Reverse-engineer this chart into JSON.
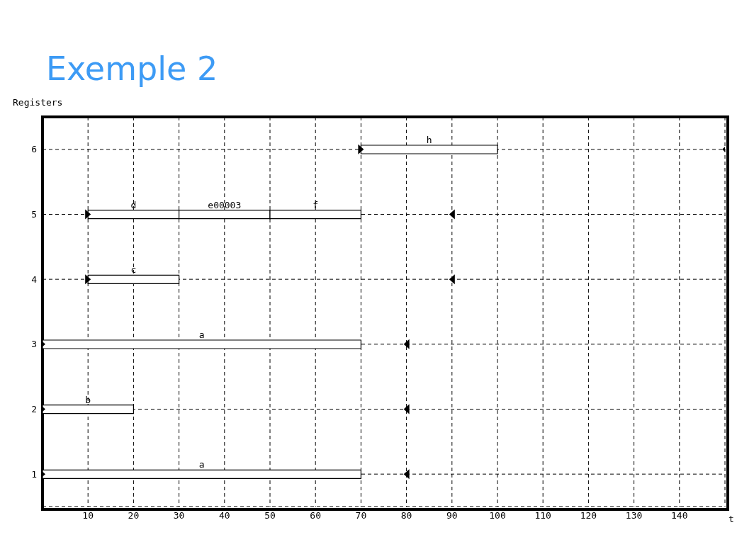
{
  "chart_data": {
    "type": "bar",
    "orientation": "horizontal",
    "title": "Exemple 2",
    "xlabel": "t",
    "categories": [
      "6",
      "5",
      "4",
      "3",
      "2",
      "1"
    ],
    "series": [
      {
        "color": "#ffffff",
        "base": [
          70,
          10,
          10,
          0,
          0,
          0
        ],
        "values": [
          30,
          20,
          20,
          70,
          20,
          70
        ],
        "value_labels": [
          "h",
          "d",
          "c",
          "a",
          "b",
          "a"
        ]
      },
      {
        "color": "#ffffff",
        "base": [
          null,
          30,
          null,
          null,
          null,
          null
        ],
        "values": [
          null,
          20,
          null,
          null,
          null,
          null
        ],
        "value_labels": [
          null,
          "e00003",
          null,
          null,
          null,
          null
        ]
      },
      {
        "color": "#ffffff",
        "base": [
          null,
          50,
          null,
          null,
          null,
          null
        ],
        "values": [
          null,
          20,
          null,
          null,
          null,
          null
        ],
        "value_labels": [
          null,
          "f",
          null,
          null,
          null,
          null
        ]
      },
      {
        "type": "scatter",
        "color": "#000000",
        "marker": "triangle",
        "values": [
          70,
          10,
          10,
          0,
          0,
          0
        ]
      },
      {
        "type": "scatter",
        "color": "#000000",
        "marker": "triangle",
        "values": [
          150,
          90,
          90,
          80,
          80,
          80
        ]
      }
    ],
    "xlim": [
      0,
      150
    ],
    "xticks": [
      10,
      20,
      30,
      40,
      50,
      60,
      70,
      80,
      90,
      100,
      110,
      120,
      130,
      140
    ],
    "grid": true,
    "annotations": [
      "Registers"
    ]
  }
}
